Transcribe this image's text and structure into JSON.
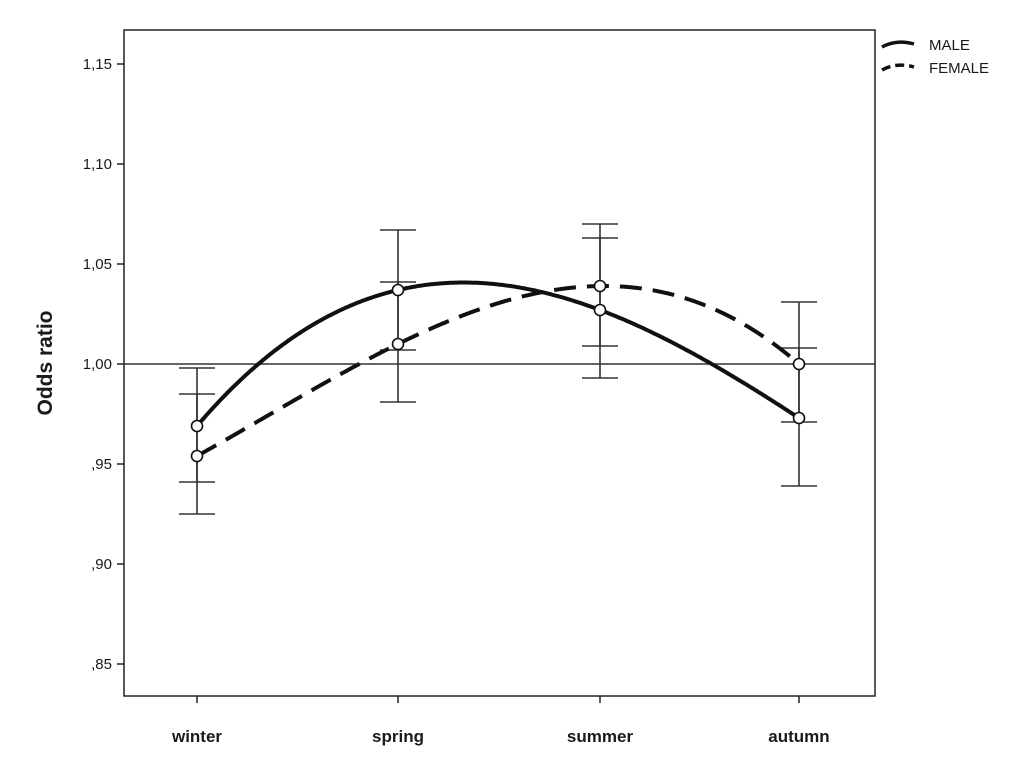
{
  "chart_data": {
    "type": "line",
    "title": "",
    "xlabel": "",
    "ylabel": "Odds ratio",
    "categories": [
      "winter",
      "spring",
      "summer",
      "autumn"
    ],
    "ylim": [
      0.83,
      1.165
    ],
    "y_ticks": [
      0.85,
      0.9,
      0.95,
      1.0,
      1.05,
      1.1,
      1.15
    ],
    "y_tick_labels": [
      ",85",
      ",90",
      ",95",
      "1,00",
      "1,05",
      "1,10",
      "1,15"
    ],
    "reference_line": 1.0,
    "legend_position": "top-right",
    "grid": false,
    "series": [
      {
        "name": "MALE",
        "style": "solid",
        "values": [
          0.969,
          1.037,
          1.027,
          0.973
        ],
        "ci_lower": [
          0.941,
          1.007,
          0.993,
          0.939
        ],
        "ci_upper": [
          0.998,
          1.067,
          1.063,
          1.008
        ]
      },
      {
        "name": "FEMALE",
        "style": "dashed",
        "values": [
          0.954,
          1.01,
          1.039,
          1.0
        ],
        "ci_lower": [
          0.925,
          0.981,
          1.009,
          0.971
        ],
        "ci_upper": [
          0.985,
          1.041,
          1.07,
          1.031
        ]
      }
    ],
    "colors": {
      "line": "#111111",
      "axis": "#222222"
    }
  }
}
